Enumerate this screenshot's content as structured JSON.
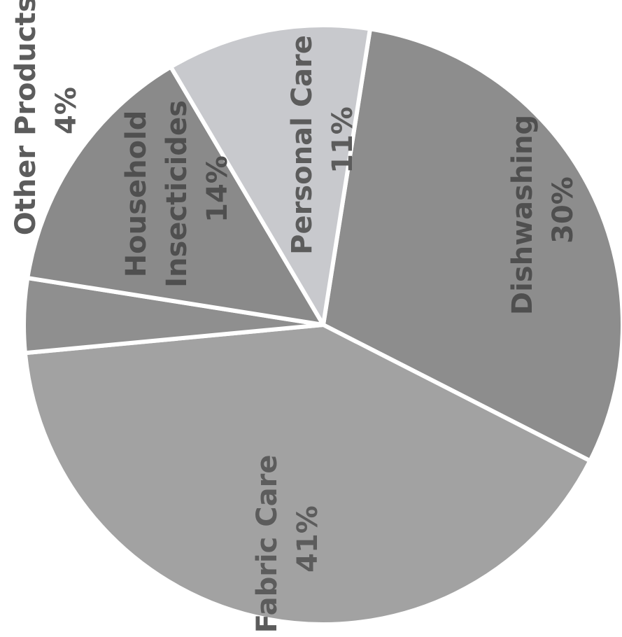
{
  "chart_data": {
    "type": "pie",
    "title": "",
    "rotated_text": "-90deg",
    "slices": [
      {
        "label": "Dishwashing",
        "value": 30,
        "value_label": "30%",
        "color": "#8d8d8d"
      },
      {
        "label": "Fabric Care",
        "value": 41,
        "value_label": "41%",
        "color": "#a2a2a2"
      },
      {
        "label": "Other Products",
        "value": 4,
        "value_label": "4%",
        "color": "#8f8f8f"
      },
      {
        "label": "Household Insecticides",
        "value": 14,
        "value_label": "14%",
        "color": "#8a8a8a"
      },
      {
        "label": "Personal Care",
        "value": 11,
        "value_label": "11%",
        "color": "#c8c9cd"
      }
    ],
    "label_lines": {
      "dishwashing": [
        "Dishwashing",
        "30%"
      ],
      "fabric_care": [
        "Fabric Care",
        "41%"
      ],
      "other_products": [
        "Other Products",
        "4%"
      ],
      "household_insecticides": [
        "Household",
        "Insecticides",
        "14%"
      ],
      "personal_care": [
        "Personal Care",
        "11%"
      ]
    }
  }
}
